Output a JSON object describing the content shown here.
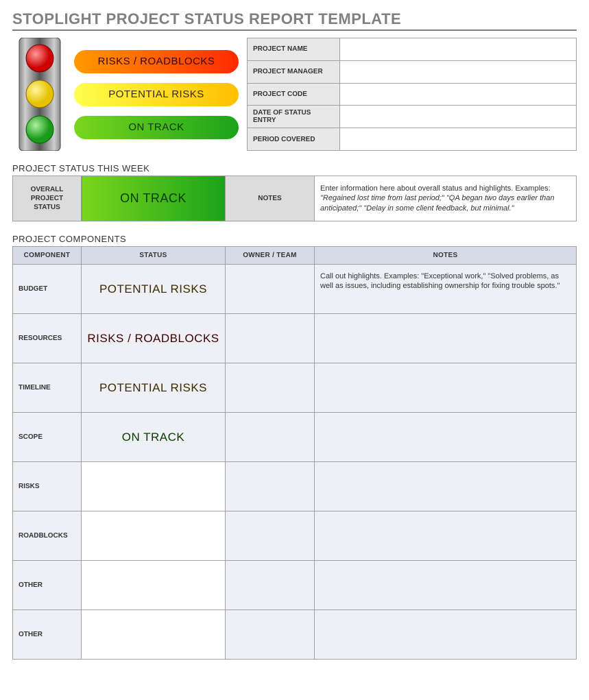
{
  "title": "STOPLIGHT PROJECT STATUS REPORT TEMPLATE",
  "colors": {
    "title_gray": "#808080",
    "header_gray": "#dcdcdc",
    "info_label_bg": "#e8e8e8",
    "comp_header_bg": "#d7dbe8",
    "comp_cell_bg": "#eef0f6",
    "red_grad_from": "#ff9a00",
    "red_grad_to": "#ff2a00",
    "yellow_grad_from": "#ffff4d",
    "yellow_grad_to": "#ffbf00",
    "green_grad_from": "#7ad61c",
    "green_grad_to": "#1aa31a"
  },
  "legend": {
    "red": "RISKS / ROADBLOCKS",
    "yellow": "POTENTIAL RISKS",
    "green": "ON TRACK"
  },
  "info_fields": [
    {
      "label": "PROJECT NAME",
      "value": ""
    },
    {
      "label": "PROJECT MANAGER",
      "value": ""
    },
    {
      "label": "PROJECT CODE",
      "value": ""
    },
    {
      "label": "DATE OF STATUS ENTRY",
      "value": ""
    },
    {
      "label": "PERIOD COVERED",
      "value": ""
    }
  ],
  "status_week": {
    "section_label": "PROJECT STATUS THIS WEEK",
    "overall_label": "OVERALL PROJECT STATUS",
    "status_text": "ON TRACK",
    "status_class": "grad-green",
    "notes_label": "NOTES",
    "notes_intro": "Enter information here about overall status and highlights. Examples: ",
    "notes_examples": "\"Regained lost time from last period;\" \"QA began two days earlier than anticipated;\" \"Delay in some client feedback, but minimal.\""
  },
  "components": {
    "section_label": "PROJECT COMPONENTS",
    "headers": {
      "component": "COMPONENT",
      "status": "STATUS",
      "owner": "OWNER / TEAM",
      "notes": "NOTES"
    },
    "rows": [
      {
        "label": "BUDGET",
        "status_text": "POTENTIAL RISKS",
        "status_class": "grad-yellow",
        "owner": "",
        "notes": "Call out highlights. Examples: \"Exceptional work,\" \"Solved problems, as well as issues, including establishing ownership for fixing trouble spots.\""
      },
      {
        "label": "RESOURCES",
        "status_text": "RISKS / ROADBLOCKS",
        "status_class": "grad-red",
        "owner": "",
        "notes": ""
      },
      {
        "label": "TIMELINE",
        "status_text": "POTENTIAL RISKS",
        "status_class": "grad-yellow",
        "owner": "",
        "notes": ""
      },
      {
        "label": "SCOPE",
        "status_text": "ON TRACK",
        "status_class": "grad-green",
        "owner": "",
        "notes": ""
      },
      {
        "label": "RISKS",
        "status_text": "",
        "status_class": "blank-status",
        "owner": "",
        "notes": ""
      },
      {
        "label": "ROADBLOCKS",
        "status_text": "",
        "status_class": "blank-status",
        "owner": "",
        "notes": ""
      },
      {
        "label": "OTHER",
        "status_text": "",
        "status_class": "blank-status",
        "owner": "",
        "notes": ""
      },
      {
        "label": "OTHER",
        "status_text": "",
        "status_class": "blank-status",
        "owner": "",
        "notes": ""
      }
    ]
  }
}
